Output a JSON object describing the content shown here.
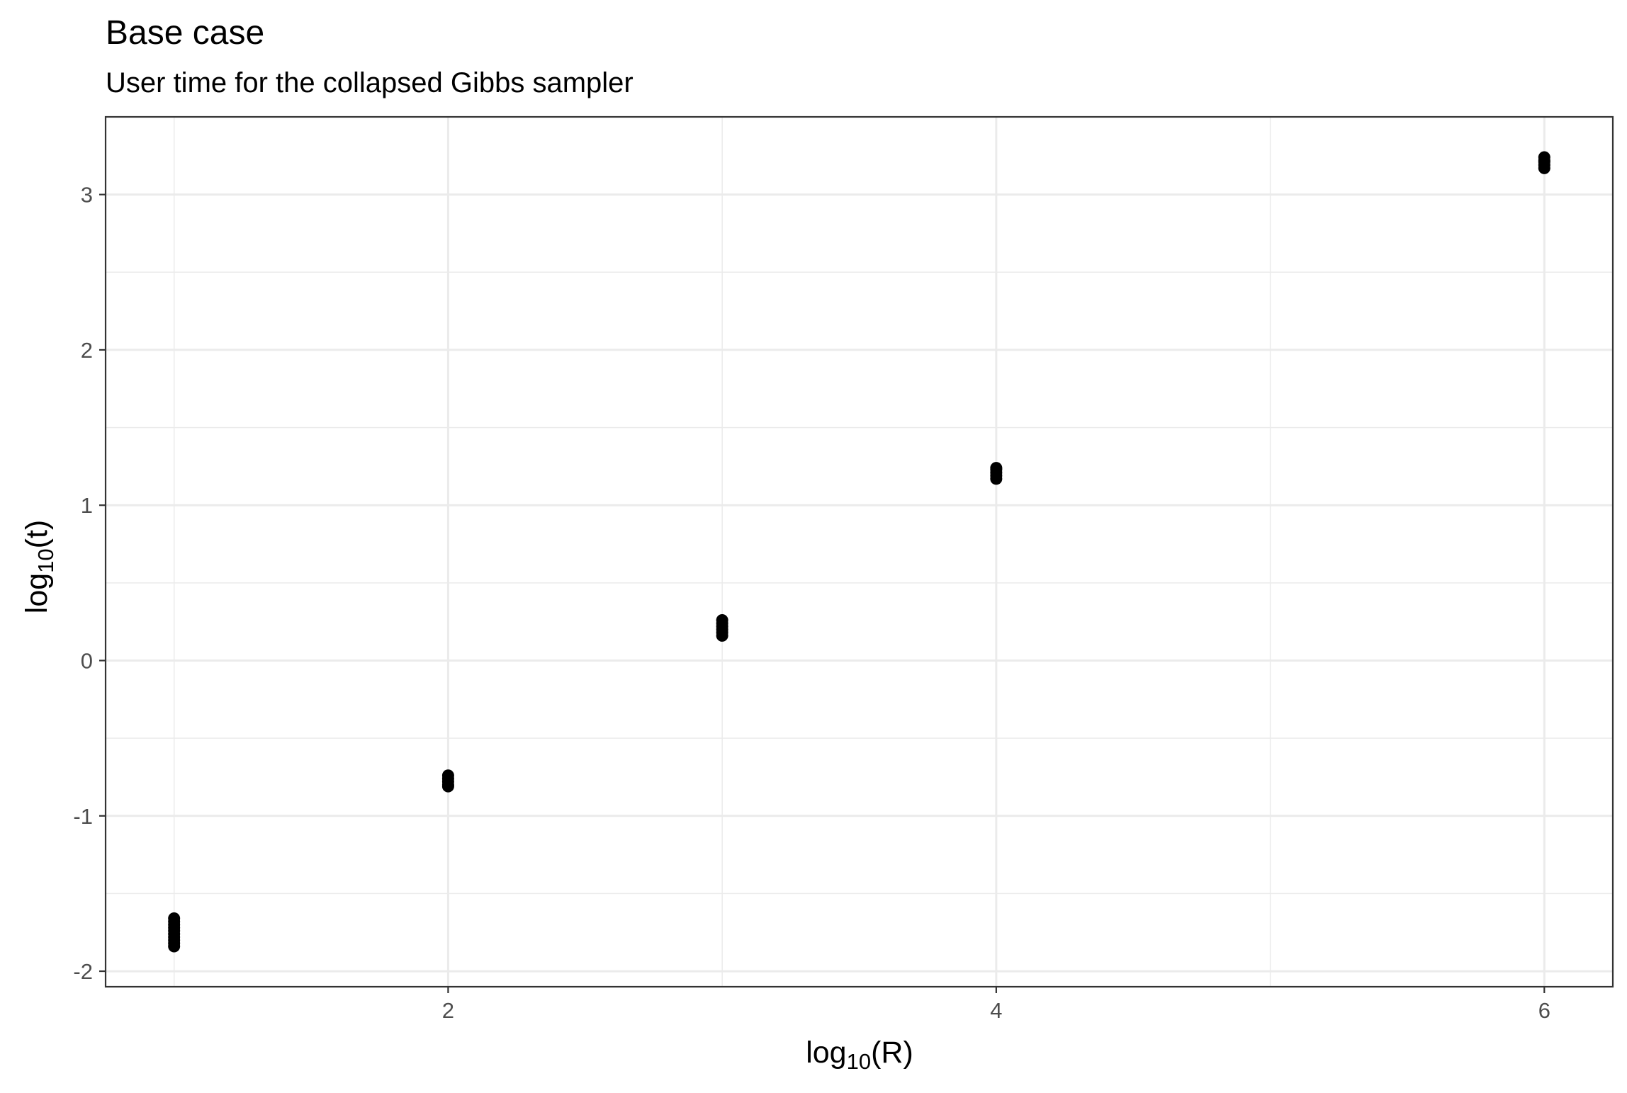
{
  "chart_data": {
    "type": "scatter",
    "title": "Base case",
    "subtitle": "User time for the collapsed Gibbs sampler",
    "xlabel": {
      "base": "log",
      "sub": "10",
      "arg": "(R)"
    },
    "ylabel": {
      "base": "log",
      "sub": "10",
      "arg": "(t)"
    },
    "xlim": [
      0.75,
      6.25
    ],
    "ylim": [
      -2.1,
      3.5
    ],
    "x_ticks": [
      2,
      4,
      6
    ],
    "y_ticks": [
      -2,
      -1,
      0,
      1,
      2,
      3
    ],
    "grid": true,
    "point_color": "#000000",
    "series": [
      {
        "x": [
          1,
          1,
          1,
          1,
          1,
          1,
          1,
          1,
          1,
          1,
          2,
          2,
          2,
          2,
          2,
          3,
          3,
          3,
          3,
          3,
          3,
          4,
          4,
          4,
          4,
          4,
          6,
          6,
          6,
          6,
          6
        ],
        "y": [
          -1.66,
          -1.68,
          -1.7,
          -1.72,
          -1.74,
          -1.76,
          -1.78,
          -1.8,
          -1.82,
          -1.84,
          -0.74,
          -0.76,
          -0.78,
          -0.8,
          -0.81,
          0.16,
          0.18,
          0.2,
          0.22,
          0.24,
          0.26,
          1.17,
          1.19,
          1.21,
          1.23,
          1.24,
          3.17,
          3.19,
          3.21,
          3.22,
          3.24
        ]
      }
    ]
  }
}
